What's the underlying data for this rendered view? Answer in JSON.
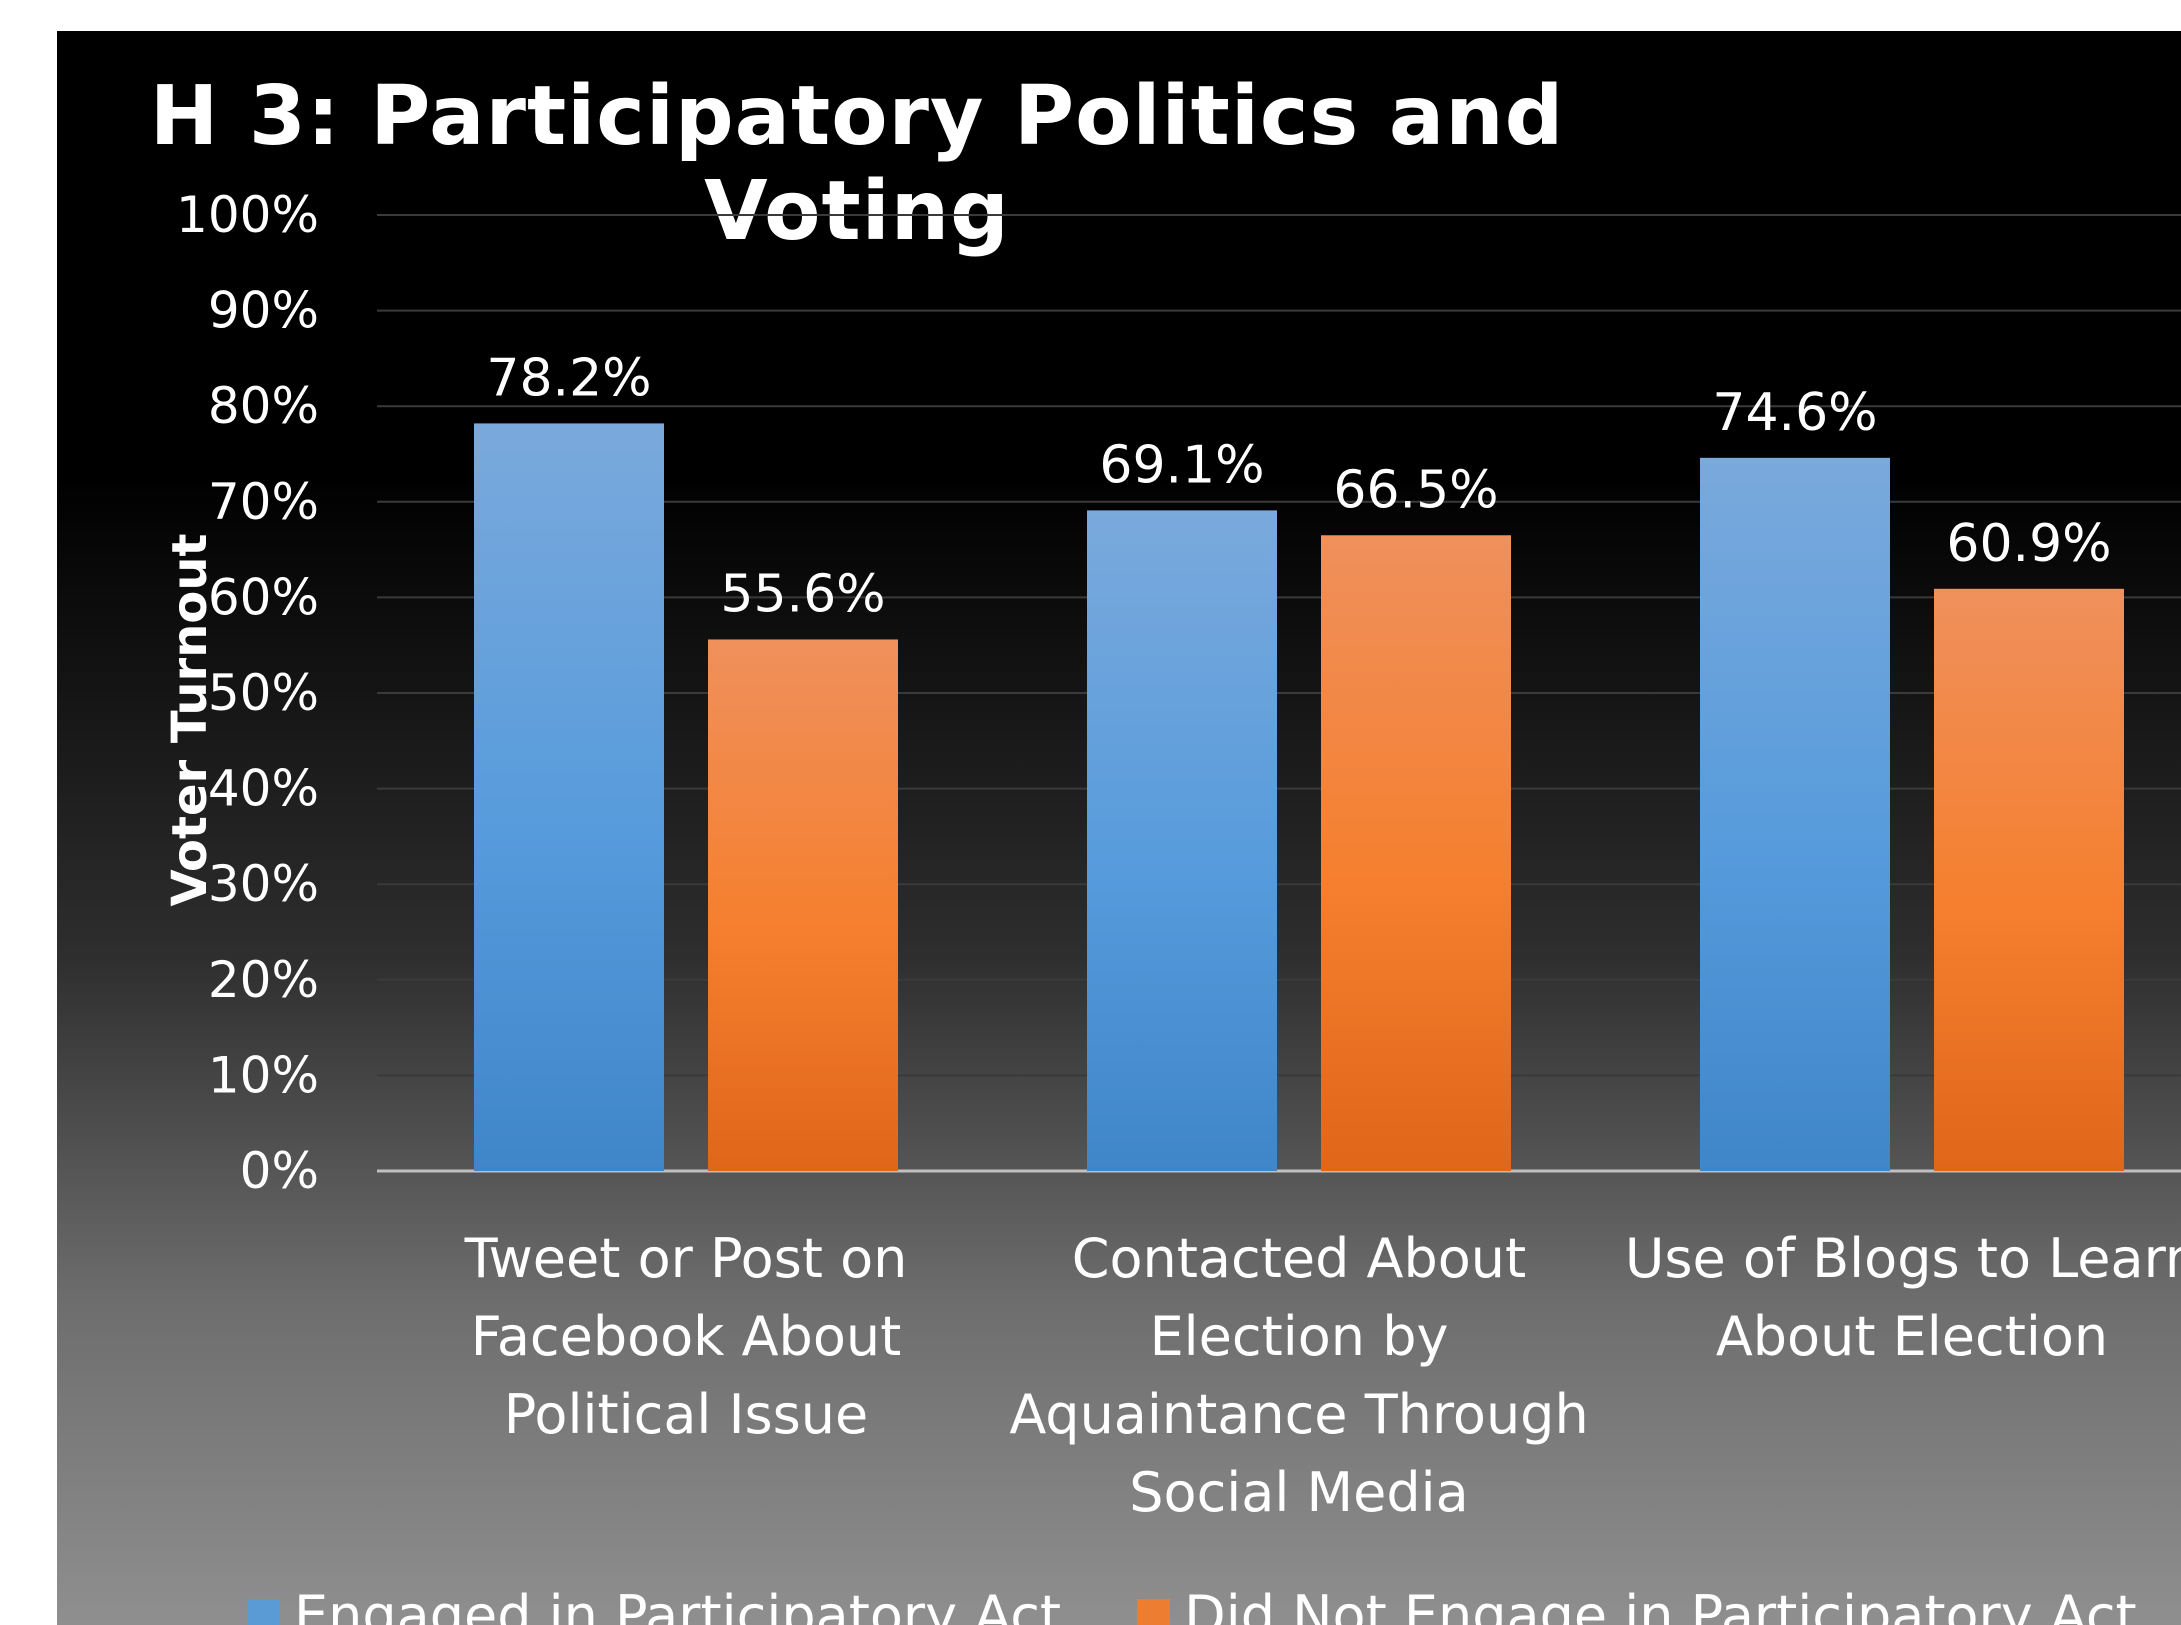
{
  "chart_data": {
    "type": "bar",
    "title": "H 3: Participatory Politics and Voting",
    "ylabel": "Voter Turnout",
    "xlabel": "",
    "ylim": [
      0,
      100
    ],
    "yticks": [
      "0%",
      "10%",
      "20%",
      "30%",
      "40%",
      "50%",
      "60%",
      "70%",
      "80%",
      "90%",
      "100%"
    ],
    "grid": true,
    "legend_position": "bottom",
    "categories": [
      [
        "Tweet or Post on",
        "Facebook About",
        "Political Issue"
      ],
      [
        "Contacted About",
        "Election by",
        "Aquaintance Through",
        "Social Media"
      ],
      [
        "Use of Blogs to Learn",
        "About Election"
      ]
    ],
    "series": [
      {
        "name": "Engaged in Participatory Act",
        "color": "#5b9bd5",
        "values": [
          78.2,
          69.1,
          74.6
        ],
        "labels": [
          "78.2%",
          "69.1%",
          "74.6%"
        ]
      },
      {
        "name": "Did Not Engage in Participatory Act",
        "color": "#ed7d31",
        "values": [
          55.6,
          66.5,
          60.9
        ],
        "labels": [
          "55.6%",
          "66.5%",
          "60.9%"
        ]
      }
    ]
  }
}
